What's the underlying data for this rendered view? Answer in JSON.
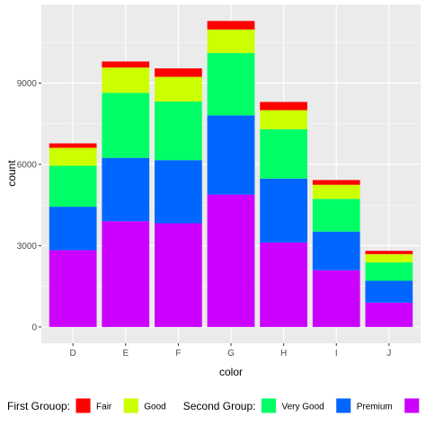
{
  "chart_data": {
    "type": "bar",
    "stacked": true,
    "categories": [
      "D",
      "E",
      "F",
      "G",
      "H",
      "I",
      "J"
    ],
    "series": [
      {
        "name": "Fair",
        "color": "#ff0000",
        "values": [
          163,
          224,
          312,
          314,
          303,
          175,
          119
        ]
      },
      {
        "name": "Good",
        "color": "#ccff00",
        "values": [
          662,
          933,
          909,
          871,
          702,
          522,
          307
        ]
      },
      {
        "name": "Very Good",
        "color": "#00ff66",
        "values": [
          1513,
          2400,
          2164,
          2299,
          1824,
          1204,
          678
        ]
      },
      {
        "name": "Premium",
        "color": "#0066ff",
        "values": [
          1603,
          2337,
          2331,
          2924,
          2360,
          1428,
          808
        ]
      },
      {
        "name": "",
        "color": "#cc00ff",
        "values": [
          2834,
          3903,
          3826,
          4884,
          3115,
          2093,
          896
        ]
      }
    ],
    "xlabel": "color",
    "ylabel": "count",
    "ylim": [
      -600,
      11900
    ],
    "yticks": [
      0,
      3000,
      6000,
      9000
    ],
    "grid": true,
    "legend_position": "bottom",
    "legend_groups": [
      {
        "title": "First Grouop:",
        "series": [
          0,
          1
        ]
      },
      {
        "title": "Second Group:",
        "series": [
          2,
          3,
          4
        ]
      }
    ]
  }
}
